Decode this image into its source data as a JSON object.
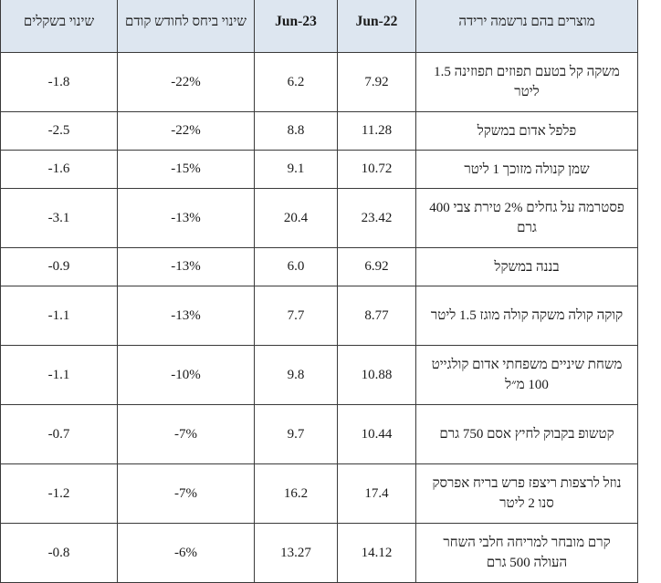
{
  "headers": {
    "change_shekels": "שינוי בשקלים",
    "change_prev_month": "שינוי ביחס לחודש קודם",
    "jun23": "Jun-23",
    "jun22": "Jun-22",
    "product": "מוצרים בהם נרשמה ירידה"
  },
  "rows": [
    {
      "change_shekels": "-1.8",
      "change_pct": "-22%",
      "jun23": "6.2",
      "jun22": "7.92",
      "product": "משקה קל בטעם תפוזים תפוזינה 1.5 ליטר"
    },
    {
      "change_shekels": "-2.5",
      "change_pct": "-22%",
      "jun23": "8.8",
      "jun22": "11.28",
      "product": "פלפל אדום במשקל"
    },
    {
      "change_shekels": "-1.6",
      "change_pct": "-15%",
      "jun23": "9.1",
      "jun22": "10.72",
      "product": "שמן קנולה מזוכך 1 ליטר"
    },
    {
      "change_shekels": "-3.1",
      "change_pct": "-13%",
      "jun23": "20.4",
      "jun22": "23.42",
      "product": "פסטרמה על גחלים 2% טירת צבי 400 גרם"
    },
    {
      "change_shekels": "-0.9",
      "change_pct": "-13%",
      "jun23": "6.0",
      "jun22": "6.92",
      "product": "בננה במשקל"
    },
    {
      "change_shekels": "-1.1",
      "change_pct": "-13%",
      "jun23": "7.7",
      "jun22": "8.77",
      "product": "קוקה קולה משקה קולה מוגז 1.5 ליטר"
    },
    {
      "change_shekels": "-1.1",
      "change_pct": "-10%",
      "jun23": "9.8",
      "jun22": "10.88",
      "product": "משחת שיניים משפחתי אדום קולגייט 100 מ״ל"
    },
    {
      "change_shekels": "-0.7",
      "change_pct": "-7%",
      "jun23": "9.7",
      "jun22": "10.44",
      "product": "קטשופ בקבוק לחיץ אסם 750 גרם"
    },
    {
      "change_shekels": "-1.2",
      "change_pct": "-7%",
      "jun23": "16.2",
      "jun22": "17.4",
      "product": "נוזל לרצפות ריצפז פרש בריח אפרסק סנו 2 ליטר"
    },
    {
      "change_shekels": "-0.8",
      "change_pct": "-6%",
      "jun23": "13.27",
      "jun22": "14.12",
      "product": "קרם מובחר למריחה חלבי השחר העולה 500 גרם"
    }
  ]
}
